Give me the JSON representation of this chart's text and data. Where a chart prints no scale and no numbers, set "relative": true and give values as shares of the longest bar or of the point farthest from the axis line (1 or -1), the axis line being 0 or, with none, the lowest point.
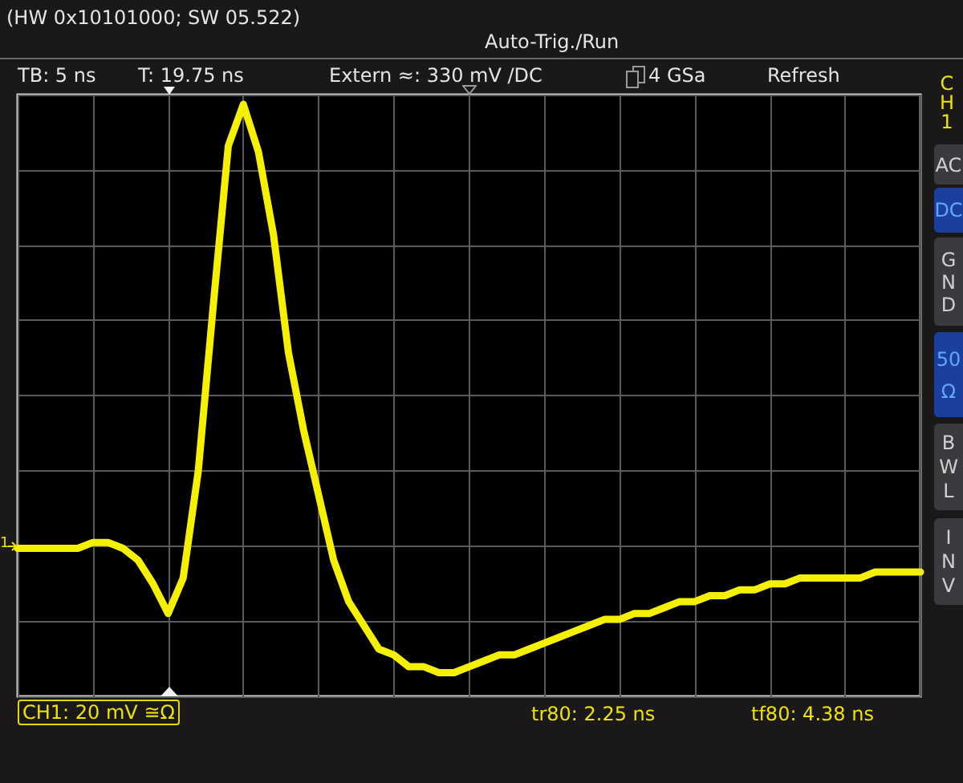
{
  "chart_data": {
    "type": "line",
    "relative": true,
    "grid": true,
    "categories": [
      null,
      null,
      null,
      null,
      null,
      null,
      null,
      null,
      null,
      null,
      null,
      null,
      null,
      null,
      null,
      null,
      null,
      null,
      null,
      null,
      null,
      null,
      null,
      null,
      null,
      null,
      null,
      null,
      null,
      null,
      null,
      null,
      null,
      null,
      null,
      null,
      null,
      null,
      null,
      null,
      null,
      null,
      null,
      null,
      null,
      null,
      null,
      null,
      null,
      null,
      null,
      null,
      null,
      null,
      null,
      null,
      null,
      null,
      null,
      null,
      null
    ],
    "series": [
      {
        "color": "#f5f000",
        "values": [
          0.25,
          0.25,
          0.25,
          0.25,
          0.25,
          0.26,
          0.26,
          0.25,
          0.23,
          0.19,
          0.14,
          0.2,
          0.38,
          0.66,
          0.93,
          1,
          0.92,
          0.78,
          0.58,
          0.45,
          0.34,
          0.23,
          0.16,
          0.12,
          0.08,
          0.07,
          0.05,
          0.05,
          0.04,
          0.04,
          0.05,
          0.06,
          0.07,
          0.07,
          0.08,
          0.09,
          0.1,
          0.11,
          0.12,
          0.13,
          0.13,
          0.14,
          0.14,
          0.15,
          0.16,
          0.16,
          0.17,
          0.17,
          0.18,
          0.18,
          0.19,
          0.19,
          0.2,
          0.2,
          0.2,
          0.2,
          0.2,
          0.21,
          0.21,
          0.21,
          0.21
        ]
      }
    ],
    "annotations": [
      "(HW 0x10101000; SW 05.522)",
      "Auto-Trig./Run",
      "TB: 5 ns",
      "T: 19.75 ns",
      "Extern ≈: 330 mV /DC",
      "4 GSa",
      "Refresh",
      "CH1",
      "AC",
      "DC",
      "GND",
      "50 Ω",
      "BWL",
      "INV",
      "1",
      "CH1: 20 mV ≅Ω",
      "tr80: 2.25 ns",
      "tf80: 4.38 ns"
    ]
  }
}
